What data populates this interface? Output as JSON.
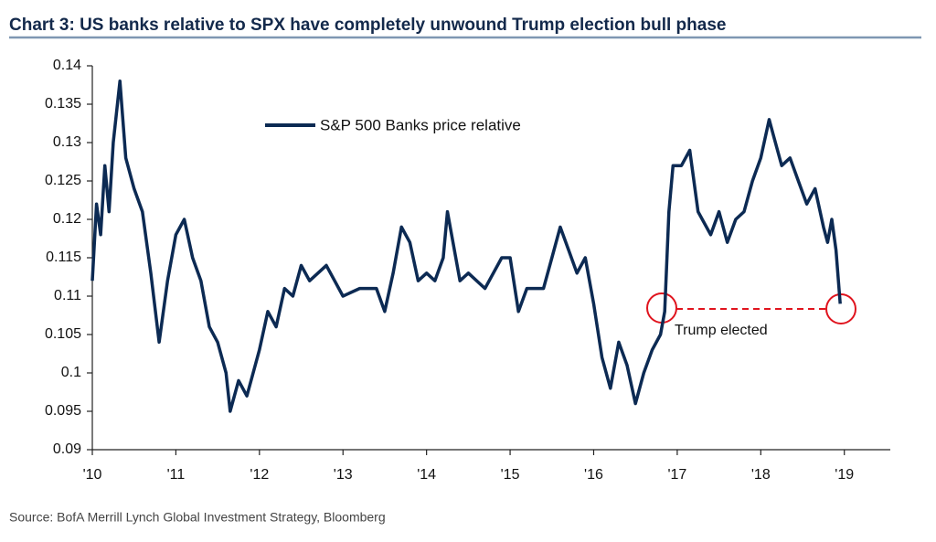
{
  "chart_data": {
    "type": "line",
    "title": "Chart 3: US banks relative to SPX have completely unwound Trump election bull phase",
    "source": "Source:  BofA Merrill Lynch Global Investment Strategy, Bloomberg",
    "annotation": "Trump elected",
    "xlim": [
      2010,
      2019.55
    ],
    "ylim": [
      0.09,
      0.14
    ],
    "xticks": [
      {
        "value": 2010,
        "label": "'10"
      },
      {
        "value": 2011,
        "label": "'11"
      },
      {
        "value": 2012,
        "label": "'12"
      },
      {
        "value": 2013,
        "label": "'13"
      },
      {
        "value": 2014,
        "label": "'14"
      },
      {
        "value": 2015,
        "label": "'15"
      },
      {
        "value": 2016,
        "label": "'16"
      },
      {
        "value": 2017,
        "label": "'17"
      },
      {
        "value": 2018,
        "label": "'18"
      },
      {
        "value": 2019,
        "label": "'19"
      }
    ],
    "yticks": [
      0.09,
      0.095,
      0.1,
      0.105,
      0.11,
      0.115,
      0.12,
      0.125,
      0.13,
      0.135,
      0.14
    ],
    "x": [
      2010.0,
      2010.05,
      2010.1,
      2010.15,
      2010.2,
      2010.25,
      2010.33,
      2010.4,
      2010.5,
      2010.6,
      2010.7,
      2010.8,
      2010.9,
      2011.0,
      2011.1,
      2011.2,
      2011.3,
      2011.4,
      2011.5,
      2011.6,
      2011.65,
      2011.75,
      2011.85,
      2012.0,
      2012.1,
      2012.2,
      2012.3,
      2012.4,
      2012.5,
      2012.6,
      2012.8,
      2012.9,
      2013.0,
      2013.2,
      2013.4,
      2013.5,
      2013.6,
      2013.7,
      2013.8,
      2013.9,
      2014.0,
      2014.1,
      2014.2,
      2014.25,
      2014.4,
      2014.5,
      2014.7,
      2014.9,
      2015.0,
      2015.1,
      2015.2,
      2015.4,
      2015.5,
      2015.6,
      2015.7,
      2015.8,
      2015.9,
      2016.0,
      2016.1,
      2016.2,
      2016.3,
      2016.4,
      2016.5,
      2016.6,
      2016.7,
      2016.8,
      2016.85,
      2016.9,
      2016.95,
      2017.05,
      2017.15,
      2017.25,
      2017.4,
      2017.5,
      2017.6,
      2017.7,
      2017.8,
      2017.9,
      2018.0,
      2018.1,
      2018.15,
      2018.25,
      2018.35,
      2018.45,
      2018.55,
      2018.65,
      2018.75,
      2018.8,
      2018.85,
      2018.9,
      2018.95
    ],
    "series": [
      {
        "name": "S&P 500 Banks price relative",
        "color": "#0c2a53",
        "values": [
          0.112,
          0.122,
          0.118,
          0.127,
          0.121,
          0.13,
          0.138,
          0.128,
          0.124,
          0.121,
          0.113,
          0.104,
          0.112,
          0.118,
          0.12,
          0.115,
          0.112,
          0.106,
          0.104,
          0.1,
          0.095,
          0.099,
          0.097,
          0.103,
          0.108,
          0.106,
          0.111,
          0.11,
          0.114,
          0.112,
          0.114,
          0.112,
          0.11,
          0.111,
          0.111,
          0.108,
          0.113,
          0.119,
          0.117,
          0.112,
          0.113,
          0.112,
          0.115,
          0.121,
          0.112,
          0.113,
          0.111,
          0.115,
          0.115,
          0.108,
          0.111,
          0.111,
          0.115,
          0.119,
          0.116,
          0.113,
          0.115,
          0.109,
          0.102,
          0.098,
          0.104,
          0.101,
          0.096,
          0.1,
          0.103,
          0.105,
          0.108,
          0.121,
          0.127,
          0.127,
          0.129,
          0.121,
          0.118,
          0.121,
          0.117,
          0.12,
          0.121,
          0.125,
          0.128,
          0.133,
          0.131,
          0.127,
          0.128,
          0.125,
          0.122,
          0.124,
          0.119,
          0.117,
          0.12,
          0.116,
          0.109
        ]
      }
    ]
  }
}
